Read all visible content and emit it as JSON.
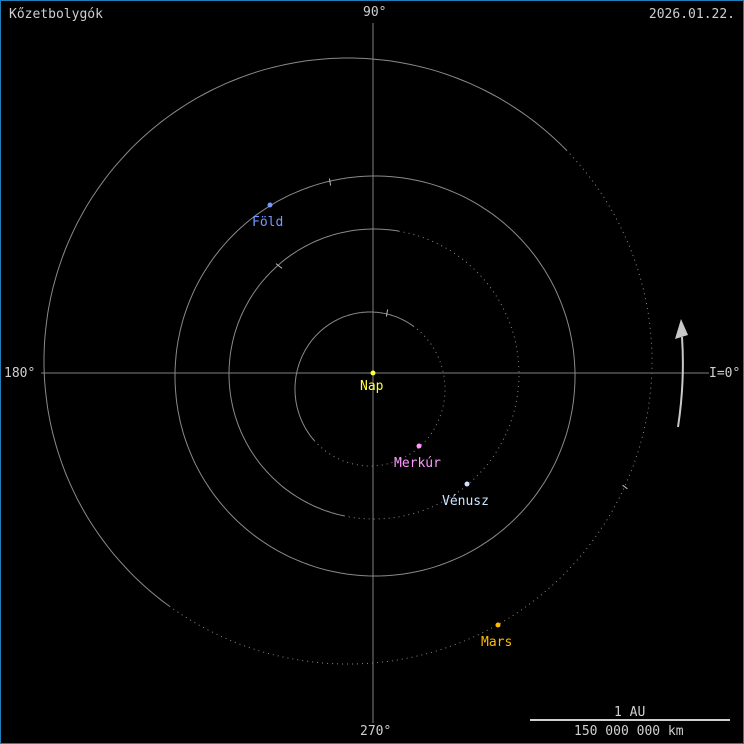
{
  "title": "Kőzetbolygók",
  "date": "2026.01.22.",
  "axis_labels": {
    "top": "90°",
    "left": "180°",
    "bottom": "270°",
    "right": "I=0°"
  },
  "direction_arrow_icon": "counterclockwise-arrow",
  "bodies": [
    {
      "name": "Nap",
      "color": "#ffff40"
    },
    {
      "name": "Merkúr",
      "color": "#ff99ff"
    },
    {
      "name": "Vénusz",
      "color": "#cce4ff"
    },
    {
      "name": "Föld",
      "color": "#7799ff"
    },
    {
      "name": "Mars",
      "color": "#ffbb00"
    }
  ],
  "scale": {
    "top": "1 AU",
    "bottom": "150 000 000 km"
  },
  "colors": {
    "orbit": "#8a8a8a",
    "axis": "#808080",
    "text": "#cfcfcf",
    "frame": "#1f7fb8"
  }
}
